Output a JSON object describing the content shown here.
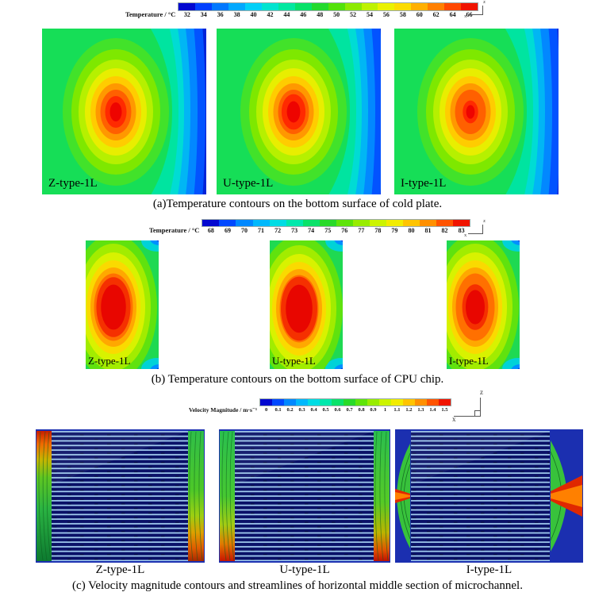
{
  "colorbars": {
    "a": {
      "title": "Temperature / °C",
      "ticks": [
        "32",
        "34",
        "36",
        "38",
        "40",
        "42",
        "44",
        "46",
        "48",
        "50",
        "52",
        "54",
        "56",
        "58",
        "60",
        "62",
        "64",
        "66"
      ],
      "colors": [
        "#0208d0",
        "#0040ff",
        "#0078ff",
        "#00a8ff",
        "#00d0f8",
        "#00e4d0",
        "#00e8a0",
        "#06e268",
        "#22da2e",
        "#52e20a",
        "#8cea00",
        "#bef200",
        "#eaf200",
        "#fcdc00",
        "#ffb000",
        "#ff8000",
        "#ff4800",
        "#f01400"
      ]
    },
    "b": {
      "title": "Temperature / °C",
      "ticks": [
        "68",
        "69",
        "70",
        "71",
        "72",
        "73",
        "74",
        "75",
        "76",
        "77",
        "78",
        "79",
        "80",
        "81",
        "82",
        "83"
      ],
      "colors": [
        "#0208d0",
        "#0048ff",
        "#0088ff",
        "#00b8fc",
        "#00dce4",
        "#00e8ac",
        "#0ae26a",
        "#28da28",
        "#5ee40a",
        "#98ec00",
        "#ccf400",
        "#f2ec00",
        "#ffc400",
        "#ff9000",
        "#ff5400",
        "#f01400"
      ]
    },
    "c": {
      "title": "Velocity Magnitude / m·s⁻¹",
      "ticks": [
        "0",
        "0.1",
        "0.2",
        "0.3",
        "0.4",
        "0.5",
        "0.6",
        "0.7",
        "0.8",
        "0.9",
        "1",
        "1.1",
        "1.2",
        "1.3",
        "1.4",
        "1.5"
      ],
      "colors": [
        "#0208d0",
        "#0048ff",
        "#0088ff",
        "#00b8fc",
        "#00dce4",
        "#00e8ac",
        "#0ae26a",
        "#28da28",
        "#5ee40a",
        "#98ec00",
        "#ccf400",
        "#f2ec00",
        "#ffc400",
        "#ff9000",
        "#ff5400",
        "#f01400"
      ]
    }
  },
  "axis_triad": {
    "z": "z",
    "x": "x"
  },
  "panels": {
    "a": {
      "caption": "(a)Temperature contours on the bottom surface of cold plate.",
      "plots": [
        {
          "label": "Z-type-1L"
        },
        {
          "label": "U-type-1L"
        },
        {
          "label": "I-type-1L"
        }
      ]
    },
    "b": {
      "caption": "(b) Temperature contours on the bottom surface of CPU chip.",
      "plots": [
        {
          "label": "Z-type-1L"
        },
        {
          "label": "U-type-1L"
        },
        {
          "label": "I-type-1L"
        }
      ]
    },
    "c": {
      "caption": "(c) Velocity magnitude contours and streamlines of horizontal middle section of microchannel.",
      "plots": [
        {
          "label": "Z-type-1L"
        },
        {
          "label": "U-type-1L"
        },
        {
          "label": "I-type-1L"
        }
      ]
    }
  },
  "chart_data": [
    {
      "type": "heatmap",
      "subtype": "filled-contour",
      "title": "(a)Temperature contours on the bottom surface of cold plate.",
      "subplots": [
        "Z-type-1L",
        "U-type-1L",
        "I-type-1L"
      ],
      "colorbar_label": "Temperature / °C",
      "colorbar_ticks": [
        32,
        34,
        36,
        38,
        40,
        42,
        44,
        46,
        48,
        50,
        52,
        54,
        56,
        58,
        60,
        62,
        64,
        66
      ],
      "value_range": [
        32,
        66
      ],
      "palette": "rainbow blue-to-red, 18 discrete levels",
      "legend_position": "top",
      "pattern": "Each square plate shows an elliptical hot spot (~64-66 °C peak) slightly left of center, rings cooling outward through orange/yellow/green, with coolest region (~32-38 °C, blue) along the right edge; I-type peak slightly lower than Z/U."
    },
    {
      "type": "heatmap",
      "subtype": "filled-contour",
      "title": "(b) Temperature contours on the bottom surface of CPU chip.",
      "subplots": [
        "Z-type-1L",
        "U-type-1L",
        "I-type-1L"
      ],
      "colorbar_label": "Temperature / °C",
      "colorbar_ticks": [
        68,
        69,
        70,
        71,
        72,
        73,
        74,
        75,
        76,
        77,
        78,
        79,
        80,
        81,
        82,
        83
      ],
      "value_range": [
        68,
        83
      ],
      "palette": "rainbow blue-to-red, 16 discrete levels",
      "legend_position": "top",
      "pattern": "Tall narrow chip footprint dominated by a large red core (~82-83 °C) left of center, green edges (~70-72 °C) and small cool blue patches (~68 °C) at the upper-right and lower-right corners; I-type core smallest."
    },
    {
      "type": "heatmap",
      "subtype": "filled-contour with streamlines",
      "title": "(c) Velocity magnitude contours and streamlines of horizontal middle section of microchannel.",
      "subplots": [
        "Z-type-1L",
        "U-type-1L",
        "I-type-1L"
      ],
      "colorbar_label": "Velocity Magnitude / m·s⁻¹",
      "colorbar_ticks": [
        0,
        0.1,
        0.2,
        0.3,
        0.4,
        0.5,
        0.6,
        0.7,
        0.8,
        0.9,
        1,
        1.1,
        1.2,
        1.3,
        1.4,
        1.5
      ],
      "value_range": [
        0,
        1.5
      ],
      "palette": "rainbow blue-to-red, 16 discrete levels",
      "legend_position": "top",
      "pattern": "Parallel horizontal microchannels at low velocity (~0.1-0.3 m/s, dark blue with light streamlines); vertical inlet/outlet manifolds at left/right edges reach ~0.8-1.5 m/s (green→orange→red). Z-type: inlet top-left, outlet bottom-right; U-type: inlet and outlet at bottom corners; I-type: red high-velocity inlet/outlet jets at mid-height of left and right edges."
    }
  ]
}
